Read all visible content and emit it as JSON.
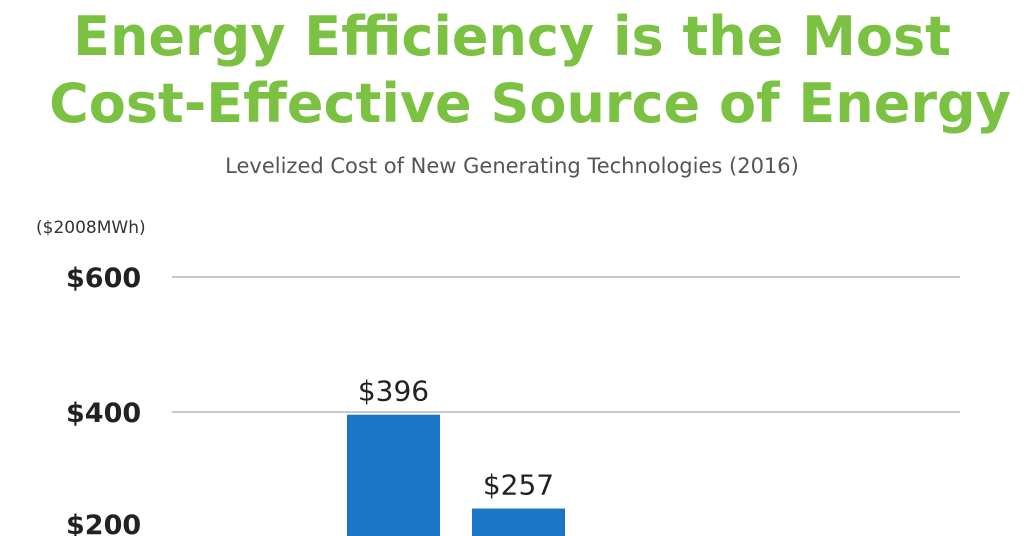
{
  "chart_data": {
    "type": "bar",
    "title": [
      "Energy Efficiency is the Most",
      "Cost-Effective Source of Energy"
    ],
    "subtitle": "Levelized Cost of New Generating Technologies (2016)",
    "ylabel": "($2008MWh)",
    "ylim": [
      0,
      600
    ],
    "yticks": [
      200,
      400,
      600
    ],
    "ytick_labels": [
      "$200",
      "$400",
      "$600"
    ],
    "grid": true,
    "colors": {
      "title": "#7cc242",
      "bar": "#1a75c4",
      "grid": "#c8c8c8"
    },
    "values": [
      396,
      257
    ],
    "data_labels": [
      "$396",
      "$257"
    ]
  }
}
